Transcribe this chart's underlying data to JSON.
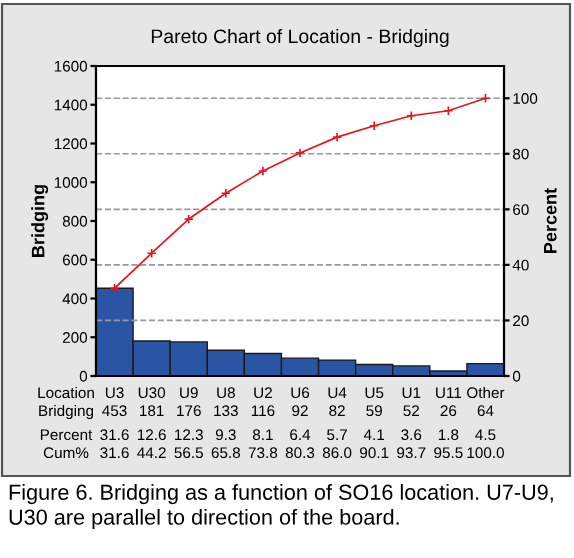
{
  "chart_data": {
    "type": "bar",
    "title": "Pareto Chart of Location - Bridging",
    "xlabel": "Location",
    "ylabel": "Bridging",
    "y2label": "Percent",
    "categories": [
      "U3",
      "U30",
      "U9",
      "U8",
      "U2",
      "U6",
      "U4",
      "U5",
      "U1",
      "U11",
      "Other"
    ],
    "series": [
      {
        "color": "#2a55a5",
        "values": [
          453,
          181,
          176,
          133,
          116,
          92,
          82,
          59,
          52,
          26,
          64
        ]
      },
      {
        "type": "line",
        "axis": "y2",
        "color": "#e8141c",
        "marker": "cross",
        "values": [
          31.6,
          44.2,
          56.5,
          65.8,
          73.8,
          80.3,
          86.0,
          90.1,
          93.7,
          95.5,
          100.0
        ]
      }
    ],
    "ylim": [
      0,
      1600
    ],
    "yticks": [
      0,
      200,
      400,
      600,
      800,
      1000,
      1200,
      1400,
      1600
    ],
    "y2lim": [
      0,
      111.6
    ],
    "y2ticks": [
      0,
      20,
      40,
      60,
      80,
      100
    ],
    "grid": "y",
    "annotations": [
      "Bridging",
      "453",
      "181",
      "176",
      "133",
      "116",
      "92",
      "82",
      "59",
      "52",
      "26",
      "64",
      "Percent",
      "31.6",
      "12.6",
      "12.3",
      "9.3",
      "8.1",
      "6.4",
      "5.7",
      "4.1",
      "3.6",
      "1.8",
      "4.5",
      "Cum%",
      "31.6",
      "44.2",
      "56.5",
      "65.8",
      "73.8",
      "80.3",
      "86.0",
      "90.1",
      "93.7",
      "95.5",
      "100.0",
      "Figure 6. Bridging as a function of SO16 location. U7-U9, U30 are parallel to direction of the board."
    ]
  }
}
